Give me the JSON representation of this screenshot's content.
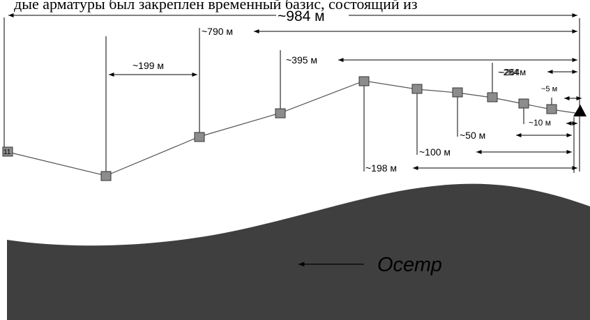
{
  "caption": "дые арматуры был закреплен временный базис, состоящий из",
  "total_label": "~984 м",
  "river": {
    "label": "Осетр",
    "arrow_icon": "arrow-left-icon"
  },
  "first_point_label": "11",
  "end_marker_icon": "triangle-icon",
  "distances": {
    "d790": "~790 м",
    "d199": "~199 м",
    "d395": "~395 м",
    "d284": "~284",
    "d264m": "~264м",
    "d5": "~5 м",
    "d10": "~10 м",
    "d50": "~50 м",
    "d100": "~100 м",
    "d198": "~198 м"
  },
  "colors": {
    "marker_fill": "#8c8c8c",
    "river_fill": "#3f3f3f",
    "line": "#000000"
  }
}
